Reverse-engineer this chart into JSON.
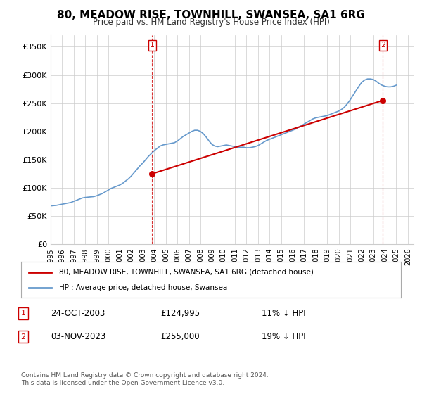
{
  "title": "80, MEADOW RISE, TOWNHILL, SWANSEA, SA1 6RG",
  "subtitle": "Price paid vs. HM Land Registry's House Price Index (HPI)",
  "ylabel_ticks": [
    "£0",
    "£50K",
    "£100K",
    "£150K",
    "£200K",
    "£250K",
    "£300K",
    "£350K"
  ],
  "ytick_values": [
    0,
    50000,
    100000,
    150000,
    200000,
    250000,
    300000,
    350000
  ],
  "ylim": [
    0,
    370000
  ],
  "xlim_start": 1995.0,
  "xlim_end": 2026.5,
  "hpi_years": [
    1995,
    1995.25,
    1995.5,
    1995.75,
    1996,
    1996.25,
    1996.5,
    1996.75,
    1997,
    1997.25,
    1997.5,
    1997.75,
    1998,
    1998.25,
    1998.5,
    1998.75,
    1999,
    1999.25,
    1999.5,
    1999.75,
    2000,
    2000.25,
    2000.5,
    2000.75,
    2001,
    2001.25,
    2001.5,
    2001.75,
    2002,
    2002.25,
    2002.5,
    2002.75,
    2003,
    2003.25,
    2003.5,
    2003.75,
    2004,
    2004.25,
    2004.5,
    2004.75,
    2005,
    2005.25,
    2005.5,
    2005.75,
    2006,
    2006.25,
    2006.5,
    2006.75,
    2007,
    2007.25,
    2007.5,
    2007.75,
    2008,
    2008.25,
    2008.5,
    2008.75,
    2009,
    2009.25,
    2009.5,
    2009.75,
    2010,
    2010.25,
    2010.5,
    2010.75,
    2011,
    2011.25,
    2011.5,
    2011.75,
    2012,
    2012.25,
    2012.5,
    2012.75,
    2013,
    2013.25,
    2013.5,
    2013.75,
    2014,
    2014.25,
    2014.5,
    2014.75,
    2015,
    2015.25,
    2015.5,
    2015.75,
    2016,
    2016.25,
    2016.5,
    2016.75,
    2017,
    2017.25,
    2017.5,
    2017.75,
    2018,
    2018.25,
    2018.5,
    2018.75,
    2019,
    2019.25,
    2019.5,
    2019.75,
    2020,
    2020.25,
    2020.5,
    2020.75,
    2021,
    2021.25,
    2021.5,
    2021.75,
    2022,
    2022.25,
    2022.5,
    2022.75,
    2023,
    2023.25,
    2023.5,
    2023.75,
    2024,
    2024.25,
    2024.5,
    2024.75,
    2025
  ],
  "hpi_values": [
    68000,
    68500,
    69000,
    70000,
    71000,
    72000,
    73000,
    74000,
    76000,
    78000,
    80000,
    82000,
    83000,
    83500,
    84000,
    84500,
    86000,
    88000,
    90000,
    93000,
    96000,
    99000,
    101000,
    103000,
    105000,
    108000,
    112000,
    116000,
    121000,
    127000,
    133000,
    139000,
    144000,
    150000,
    156000,
    161000,
    166000,
    170000,
    174000,
    176000,
    177000,
    178000,
    179000,
    180000,
    183000,
    187000,
    191000,
    194000,
    197000,
    200000,
    202000,
    202000,
    200000,
    196000,
    190000,
    183000,
    177000,
    174000,
    173000,
    174000,
    175000,
    176000,
    175000,
    174000,
    173000,
    172000,
    172000,
    172000,
    171000,
    171000,
    172000,
    173000,
    175000,
    178000,
    181000,
    184000,
    186000,
    188000,
    190000,
    192000,
    194000,
    196000,
    198000,
    200000,
    202000,
    204000,
    207000,
    210000,
    213000,
    216000,
    219000,
    222000,
    224000,
    225000,
    226000,
    227000,
    228000,
    230000,
    232000,
    234000,
    236000,
    239000,
    243000,
    249000,
    256000,
    264000,
    272000,
    280000,
    287000,
    291000,
    293000,
    293000,
    292000,
    289000,
    285000,
    282000,
    280000,
    279000,
    279000,
    280000,
    282000
  ],
  "property_sales": [
    {
      "year": 2003.82,
      "price": 124995
    },
    {
      "year": 2023.84,
      "price": 255000
    }
  ],
  "marker1_year": 2003.82,
  "marker1_label": "1",
  "marker2_year": 2023.84,
  "marker2_label": "2",
  "vline_color": "#cc0000",
  "hpi_color": "#6699cc",
  "property_color": "#cc0000",
  "legend_line1": "80, MEADOW RISE, TOWNHILL, SWANSEA, SA1 6RG (detached house)",
  "legend_line2": "HPI: Average price, detached house, Swansea",
  "table_rows": [
    {
      "num": "1",
      "date": "24-OCT-2003",
      "price": "£124,995",
      "hpi": "11% ↓ HPI"
    },
    {
      "num": "2",
      "date": "03-NOV-2023",
      "price": "£255,000",
      "hpi": "19% ↓ HPI"
    }
  ],
  "footer": "Contains HM Land Registry data © Crown copyright and database right 2024.\nThis data is licensed under the Open Government Licence v3.0.",
  "bg_color": "#ffffff",
  "grid_color": "#cccccc",
  "xtick_years": [
    1995,
    1996,
    1997,
    1998,
    1999,
    2000,
    2001,
    2002,
    2003,
    2004,
    2005,
    2006,
    2007,
    2008,
    2009,
    2010,
    2011,
    2012,
    2013,
    2014,
    2015,
    2016,
    2017,
    2018,
    2019,
    2020,
    2021,
    2022,
    2023,
    2024,
    2025,
    2026
  ]
}
